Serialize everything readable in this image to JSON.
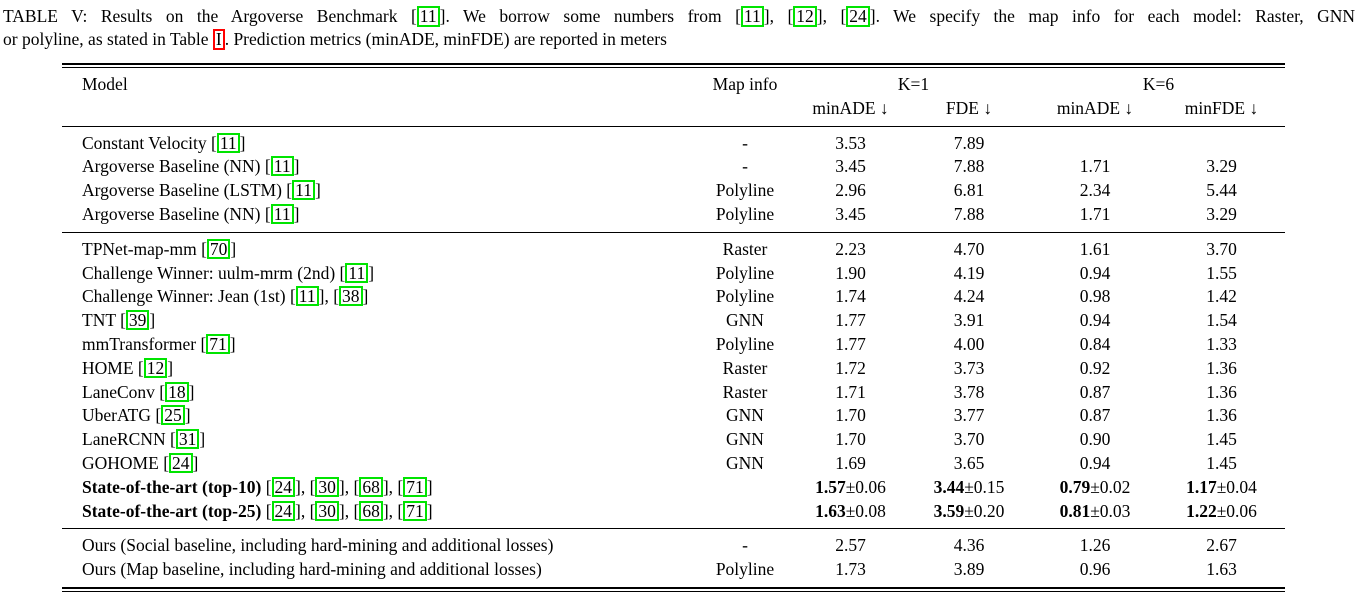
{
  "caption": {
    "line1": [
      {
        "t": "TABLE V: Results on the Argoverse Benchmark ["
      },
      {
        "cite": "11"
      },
      {
        "t": "]. We borrow some numbers from ["
      },
      {
        "cite": "11"
      },
      {
        "t": "], ["
      },
      {
        "cite": "12"
      },
      {
        "t": "], ["
      },
      {
        "cite": "24"
      },
      {
        "t": "]. We specify the map info for each model: Raster, GNN"
      }
    ],
    "line2": [
      {
        "t": "or polyline, as stated in Table "
      },
      {
        "ref": "I"
      },
      {
        "t": ". Prediction metrics (minADE, minFDE) are reported in meters"
      }
    ]
  },
  "table": {
    "headers": {
      "model": "Model",
      "map_info": "Map info",
      "k1": "K=1",
      "k6": "K=6",
      "k1_sub": [
        "minADE ↓",
        "FDE ↓"
      ],
      "k6_sub": [
        "minADE ↓",
        "minFDE ↓"
      ]
    },
    "groups": [
      {
        "rows": [
          {
            "model": "Constant Velocity",
            "cites": [
              "11"
            ],
            "bold": false,
            "map": "-",
            "vals": [
              {
                "v": "3.53",
                "pm": ""
              },
              {
                "v": "7.89",
                "pm": ""
              },
              {
                "v": "",
                "pm": ""
              },
              {
                "v": "",
                "pm": ""
              }
            ]
          },
          {
            "model": "Argoverse Baseline (NN)",
            "cites": [
              "11"
            ],
            "bold": false,
            "map": "-",
            "vals": [
              {
                "v": "3.45",
                "pm": ""
              },
              {
                "v": "7.88",
                "pm": ""
              },
              {
                "v": "1.71",
                "pm": ""
              },
              {
                "v": "3.29",
                "pm": ""
              }
            ]
          },
          {
            "model": "Argoverse Baseline (LSTM)",
            "cites": [
              "11"
            ],
            "bold": false,
            "map": "Polyline",
            "vals": [
              {
                "v": "2.96",
                "pm": ""
              },
              {
                "v": "6.81",
                "pm": ""
              },
              {
                "v": "2.34",
                "pm": ""
              },
              {
                "v": "5.44",
                "pm": ""
              }
            ]
          },
          {
            "model": "Argoverse Baseline (NN)",
            "cites": [
              "11"
            ],
            "bold": false,
            "map": "Polyline",
            "vals": [
              {
                "v": "3.45",
                "pm": ""
              },
              {
                "v": "7.88",
                "pm": ""
              },
              {
                "v": "1.71",
                "pm": ""
              },
              {
                "v": "3.29",
                "pm": ""
              }
            ]
          }
        ]
      },
      {
        "rows": [
          {
            "model": "TPNet-map-mm",
            "cites": [
              "70"
            ],
            "bold": false,
            "map": "Raster",
            "vals": [
              {
                "v": "2.23",
                "pm": ""
              },
              {
                "v": "4.70",
                "pm": ""
              },
              {
                "v": "1.61",
                "pm": ""
              },
              {
                "v": "3.70",
                "pm": ""
              }
            ]
          },
          {
            "model": "Challenge Winner: uulm-mrm (2nd)",
            "cites": [
              "11"
            ],
            "bold": false,
            "map": "Polyline",
            "vals": [
              {
                "v": "1.90",
                "pm": ""
              },
              {
                "v": "4.19",
                "pm": ""
              },
              {
                "v": "0.94",
                "pm": ""
              },
              {
                "v": "1.55",
                "pm": ""
              }
            ]
          },
          {
            "model": "Challenge Winner: Jean (1st)",
            "cites": [
              "11",
              "38"
            ],
            "bold": false,
            "map": "Polyline",
            "vals": [
              {
                "v": "1.74",
                "pm": ""
              },
              {
                "v": "4.24",
                "pm": ""
              },
              {
                "v": "0.98",
                "pm": ""
              },
              {
                "v": "1.42",
                "pm": ""
              }
            ]
          },
          {
            "model": "TNT",
            "cites": [
              "39"
            ],
            "bold": false,
            "map": "GNN",
            "vals": [
              {
                "v": "1.77",
                "pm": ""
              },
              {
                "v": "3.91",
                "pm": ""
              },
              {
                "v": "0.94",
                "pm": ""
              },
              {
                "v": "1.54",
                "pm": ""
              }
            ]
          },
          {
            "model": "mmTransformer",
            "cites": [
              "71"
            ],
            "bold": false,
            "map": "Polyline",
            "vals": [
              {
                "v": "1.77",
                "pm": ""
              },
              {
                "v": "4.00",
                "pm": ""
              },
              {
                "v": "0.84",
                "pm": ""
              },
              {
                "v": "1.33",
                "pm": ""
              }
            ]
          },
          {
            "model": "HOME",
            "cites": [
              "12"
            ],
            "bold": false,
            "map": "Raster",
            "vals": [
              {
                "v": "1.72",
                "pm": ""
              },
              {
                "v": "3.73",
                "pm": ""
              },
              {
                "v": "0.92",
                "pm": ""
              },
              {
                "v": "1.36",
                "pm": ""
              }
            ]
          },
          {
            "model": "LaneConv",
            "cites": [
              "18"
            ],
            "bold": false,
            "map": "Raster",
            "vals": [
              {
                "v": "1.71",
                "pm": ""
              },
              {
                "v": "3.78",
                "pm": ""
              },
              {
                "v": "0.87",
                "pm": ""
              },
              {
                "v": "1.36",
                "pm": ""
              }
            ]
          },
          {
            "model": "UberATG",
            "cites": [
              "25"
            ],
            "bold": false,
            "map": "GNN",
            "vals": [
              {
                "v": "1.70",
                "pm": ""
              },
              {
                "v": "3.77",
                "pm": ""
              },
              {
                "v": "0.87",
                "pm": ""
              },
              {
                "v": "1.36",
                "pm": ""
              }
            ]
          },
          {
            "model": "LaneRCNN",
            "cites": [
              "31"
            ],
            "bold": false,
            "map": "GNN",
            "vals": [
              {
                "v": "1.70",
                "pm": ""
              },
              {
                "v": "3.70",
                "pm": ""
              },
              {
                "v": "0.90",
                "pm": ""
              },
              {
                "v": "1.45",
                "pm": ""
              }
            ]
          },
          {
            "model": "GOHOME",
            "cites": [
              "24"
            ],
            "bold": false,
            "map": "GNN",
            "vals": [
              {
                "v": "1.69",
                "pm": ""
              },
              {
                "v": "3.65",
                "pm": ""
              },
              {
                "v": "0.94",
                "pm": ""
              },
              {
                "v": "1.45",
                "pm": ""
              }
            ]
          },
          {
            "model": "State-of-the-art (top-10)",
            "cites": [
              "24",
              "30",
              "68",
              "71"
            ],
            "bold": true,
            "map": "",
            "vals": [
              {
                "v": "1.57",
                "pm": "±0.06"
              },
              {
                "v": "3.44",
                "pm": "±0.15"
              },
              {
                "v": "0.79",
                "pm": "±0.02"
              },
              {
                "v": "1.17",
                "pm": "±0.04"
              }
            ]
          },
          {
            "model": "State-of-the-art (top-25)",
            "cites": [
              "24",
              "30",
              "68",
              "71"
            ],
            "bold": true,
            "map": "",
            "vals": [
              {
                "v": "1.63",
                "pm": "±0.08"
              },
              {
                "v": "3.59",
                "pm": "±0.20"
              },
              {
                "v": "0.81",
                "pm": "±0.03"
              },
              {
                "v": "1.22",
                "pm": "±0.06"
              }
            ]
          }
        ]
      },
      {
        "rows": [
          {
            "model": "Ours (Social baseline, including hard-mining and additional losses)",
            "cites": [],
            "bold": false,
            "map": "-",
            "vals": [
              {
                "v": "2.57",
                "pm": ""
              },
              {
                "v": "4.36",
                "pm": ""
              },
              {
                "v": "1.26",
                "pm": ""
              },
              {
                "v": "2.67",
                "pm": ""
              }
            ]
          },
          {
            "model": "Ours (Map baseline, including hard-mining and additional losses)",
            "cites": [],
            "bold": false,
            "map": "Polyline",
            "vals": [
              {
                "v": "1.73",
                "pm": ""
              },
              {
                "v": "3.89",
                "pm": ""
              },
              {
                "v": "0.96",
                "pm": ""
              },
              {
                "v": "1.63",
                "pm": ""
              }
            ]
          }
        ]
      }
    ]
  },
  "colors": {
    "citation_box_green": "#00e400",
    "reference_box_red": "#ff0000",
    "text": "#000000",
    "background": "#ffffff"
  }
}
